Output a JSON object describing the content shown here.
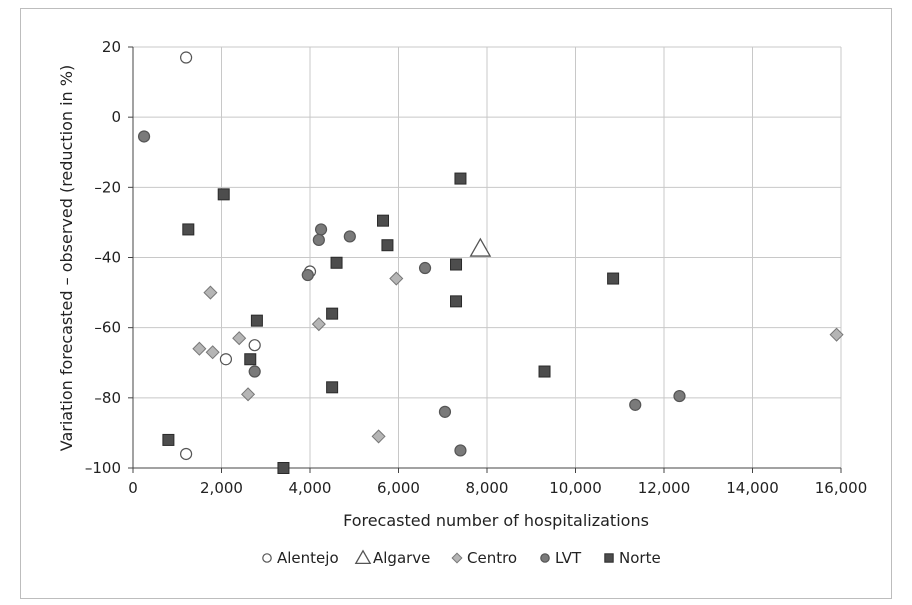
{
  "chart_data": {
    "type": "scatter",
    "title": "",
    "xlabel": "Forecasted number of hospitalizations",
    "ylabel": "Variation forecasted – observed (reduction in %)",
    "xlim": [
      0,
      16000
    ],
    "ylim": [
      -100,
      20
    ],
    "xticks": [
      0,
      2000,
      4000,
      6000,
      8000,
      10000,
      12000,
      14000,
      16000
    ],
    "xtick_labels": [
      "0",
      "2,000",
      "4,000",
      "6,000",
      "8,000",
      "10,000",
      "12,000",
      "14,000",
      "16,000"
    ],
    "yticks": [
      20,
      0,
      -20,
      -40,
      -60,
      -80,
      -100
    ],
    "ytick_labels": [
      "20",
      "0",
      "–20",
      "–40",
      "–60",
      "–80",
      "–100"
    ],
    "grid": true,
    "legend_position": "bottom",
    "series": [
      {
        "name": "Alentejo",
        "marker": "circle-open",
        "color": "#ffffff",
        "stroke": "#555555",
        "points": [
          [
            1200,
            17
          ],
          [
            4000,
            -44
          ],
          [
            2100,
            -69
          ],
          [
            2750,
            -65
          ],
          [
            1200,
            -96
          ]
        ]
      },
      {
        "name": "Algarve",
        "marker": "triangle-open",
        "color": "#ffffff",
        "stroke": "#555555",
        "points": [
          [
            7850,
            -37.5
          ]
        ]
      },
      {
        "name": "Centro",
        "marker": "diamond",
        "color": "#b5b5b5",
        "stroke": "#777777",
        "points": [
          [
            1750,
            -50
          ],
          [
            1500,
            -66
          ],
          [
            1800,
            -67
          ],
          [
            2400,
            -63
          ],
          [
            2600,
            -79
          ],
          [
            4200,
            -59
          ],
          [
            5950,
            -46
          ],
          [
            5550,
            -91
          ],
          [
            15900,
            -62
          ]
        ]
      },
      {
        "name": "LVT",
        "marker": "circle",
        "color": "#7a7a7a",
        "stroke": "#555555",
        "points": [
          [
            250,
            -5.5
          ],
          [
            4250,
            -32
          ],
          [
            4200,
            -35
          ],
          [
            4900,
            -34
          ],
          [
            3950,
            -45
          ],
          [
            2750,
            -72.5
          ],
          [
            6600,
            -43
          ],
          [
            7050,
            -84
          ],
          [
            7400,
            -95
          ],
          [
            11350,
            -82
          ],
          [
            12350,
            -79.5
          ]
        ]
      },
      {
        "name": "Norte",
        "marker": "square",
        "color": "#4d4d4d",
        "stroke": "#2a2a2a",
        "points": [
          [
            2050,
            -22
          ],
          [
            1250,
            -32
          ],
          [
            7400,
            -17.5
          ],
          [
            5650,
            -29.5
          ],
          [
            5750,
            -36.5
          ],
          [
            4600,
            -41.5
          ],
          [
            7300,
            -42
          ],
          [
            7300,
            -52.5
          ],
          [
            4500,
            -56
          ],
          [
            2800,
            -58
          ],
          [
            2650,
            -69
          ],
          [
            4500,
            -77
          ],
          [
            9300,
            -72.5
          ],
          [
            10850,
            -46
          ],
          [
            800,
            -92
          ],
          [
            3400,
            -100
          ]
        ]
      }
    ]
  }
}
